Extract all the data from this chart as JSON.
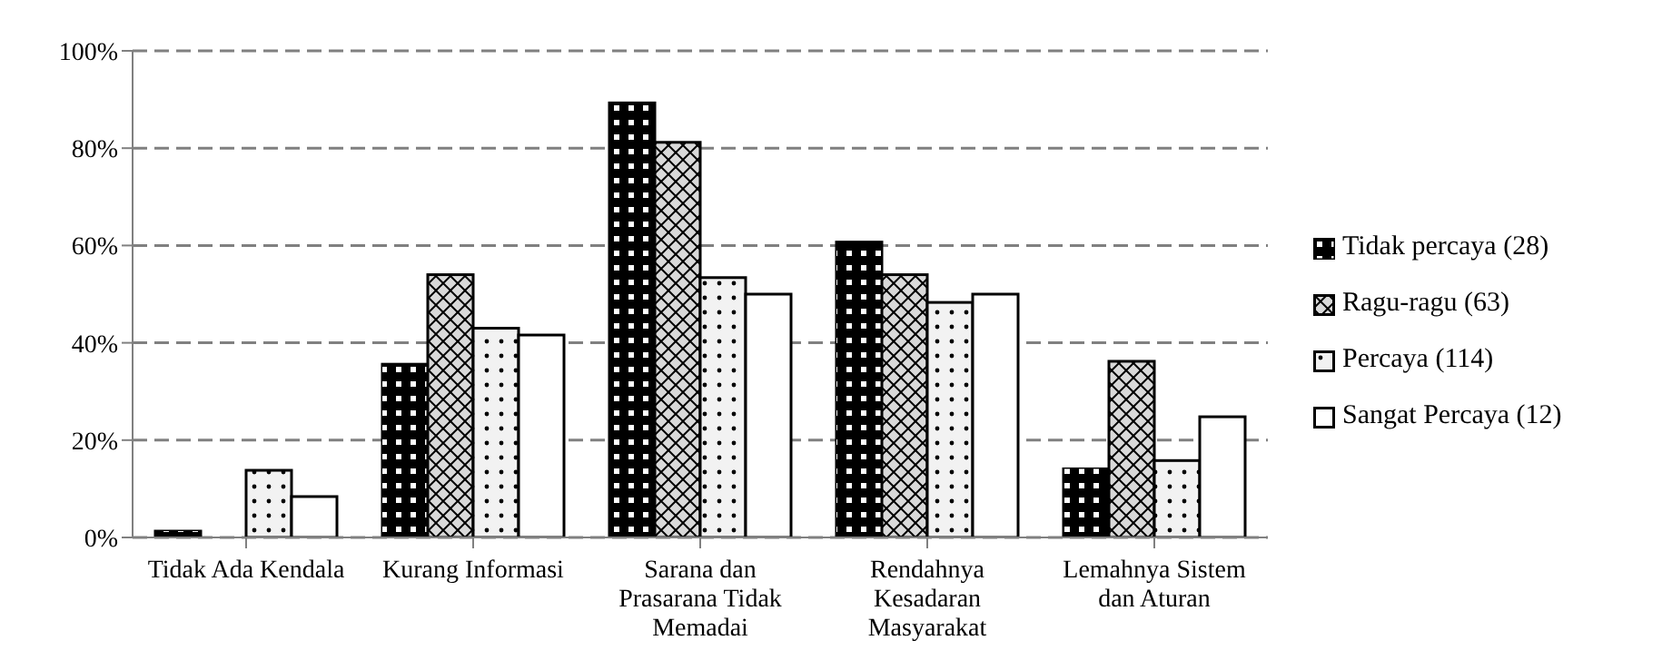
{
  "chart_data": {
    "type": "bar",
    "categories": [
      "Tidak Ada Kendala",
      "Kurang Informasi",
      "Sarana dan Prasarana Tidak Memadai",
      "Rendahnya Kesadaran Masyarakat",
      "Lemahnya Sistem dan Aturan"
    ],
    "series": [
      {
        "name": "Tidak percaya (28)",
        "color": "#000000",
        "values": [
          1.3,
          35.6,
          89.3,
          60.7,
          14.1
        ]
      },
      {
        "name": "Ragu-ragu (63)",
        "color": "#d9d9d9",
        "values": [
          0,
          54.0,
          81.2,
          54.0,
          36.2
        ]
      },
      {
        "name": "Percaya (114)",
        "color": "#f2f2f2",
        "values": [
          13.8,
          43.0,
          53.4,
          48.3,
          15.8
        ]
      },
      {
        "name": "Sangat Percaya (12)",
        "color": "#ffffff",
        "values": [
          8.4,
          41.6,
          50.0,
          50.0,
          24.8
        ]
      }
    ],
    "ylim": [
      0,
      100
    ],
    "yticks": [
      {
        "value": 0,
        "label": "0%"
      },
      {
        "value": 20,
        "label": "20%"
      },
      {
        "value": 40,
        "label": "40%"
      },
      {
        "value": 60,
        "label": "60%"
      },
      {
        "value": 80,
        "label": "80%"
      },
      {
        "value": 100,
        "label": "100%"
      }
    ],
    "grid": "y",
    "legend": "right"
  }
}
